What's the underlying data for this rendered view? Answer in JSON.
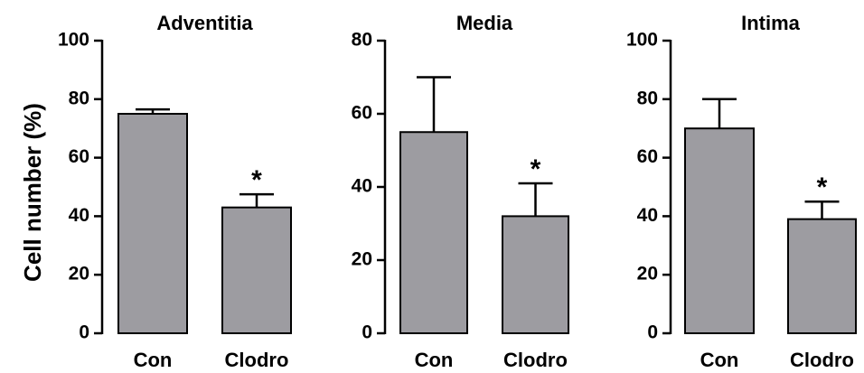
{
  "ylabel": "Cell number (%)",
  "chart_data": [
    {
      "type": "bar",
      "title": "Adventitia",
      "categories": [
        "Con",
        "Clodro"
      ],
      "values": [
        75,
        43
      ],
      "errors": [
        1.5,
        4.5
      ],
      "significance": [
        "",
        "*"
      ],
      "ylim": [
        0,
        100
      ],
      "yticks": [
        0,
        20,
        40,
        60,
        80,
        100
      ],
      "bar_color": "#9d9ca1"
    },
    {
      "type": "bar",
      "title": "Media",
      "categories": [
        "Con",
        "Clodro"
      ],
      "values": [
        55,
        32
      ],
      "errors": [
        15,
        9
      ],
      "significance": [
        "",
        "*"
      ],
      "ylim": [
        0,
        80
      ],
      "yticks": [
        0,
        20,
        40,
        60,
        80
      ],
      "bar_color": "#9d9ca1"
    },
    {
      "type": "bar",
      "title": "Intima",
      "categories": [
        "Con",
        "Clodro"
      ],
      "values": [
        70,
        39
      ],
      "errors": [
        10,
        6
      ],
      "significance": [
        "",
        "*"
      ],
      "ylim": [
        0,
        100
      ],
      "yticks": [
        0,
        20,
        40,
        60,
        80,
        100
      ],
      "bar_color": "#9d9ca1"
    }
  ]
}
